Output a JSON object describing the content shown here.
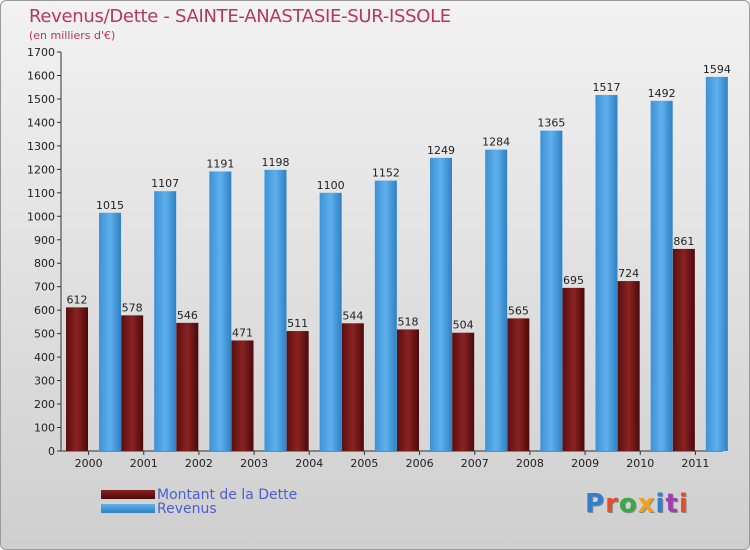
{
  "title": "Revenus/Dette - SAINTE-ANASTASIE-SUR-ISSOLE",
  "subtitle": "(en milliers d'€)",
  "legend": {
    "dette": "Montant de la Dette",
    "revenus": "Revenus"
  },
  "logo": "Proxiti",
  "colors": {
    "dette": "#7a1818",
    "revenus": "#4ea3e2",
    "title": "#b5365e",
    "legend_text": "#4a5fd0"
  },
  "chart_data": {
    "type": "bar",
    "categories": [
      "2000",
      "2001",
      "2002",
      "2003",
      "2004",
      "2005",
      "2006",
      "2007",
      "2008",
      "2009",
      "2010",
      "2011"
    ],
    "series": [
      {
        "name": "Montant de la Dette",
        "values": [
          612,
          578,
          546,
          471,
          511,
          544,
          518,
          504,
          565,
          695,
          724,
          861
        ]
      },
      {
        "name": "Revenus",
        "values": [
          1015,
          1107,
          1191,
          1198,
          1100,
          1152,
          1249,
          1284,
          1365,
          1517,
          1492,
          1594
        ]
      }
    ],
    "ylim": [
      0,
      1700
    ],
    "yticks": [
      0,
      100,
      200,
      300,
      400,
      500,
      600,
      700,
      800,
      900,
      1000,
      1100,
      1200,
      1300,
      1400,
      1500,
      1600,
      1700
    ],
    "grid": false,
    "legend_position": "bottom-left"
  }
}
